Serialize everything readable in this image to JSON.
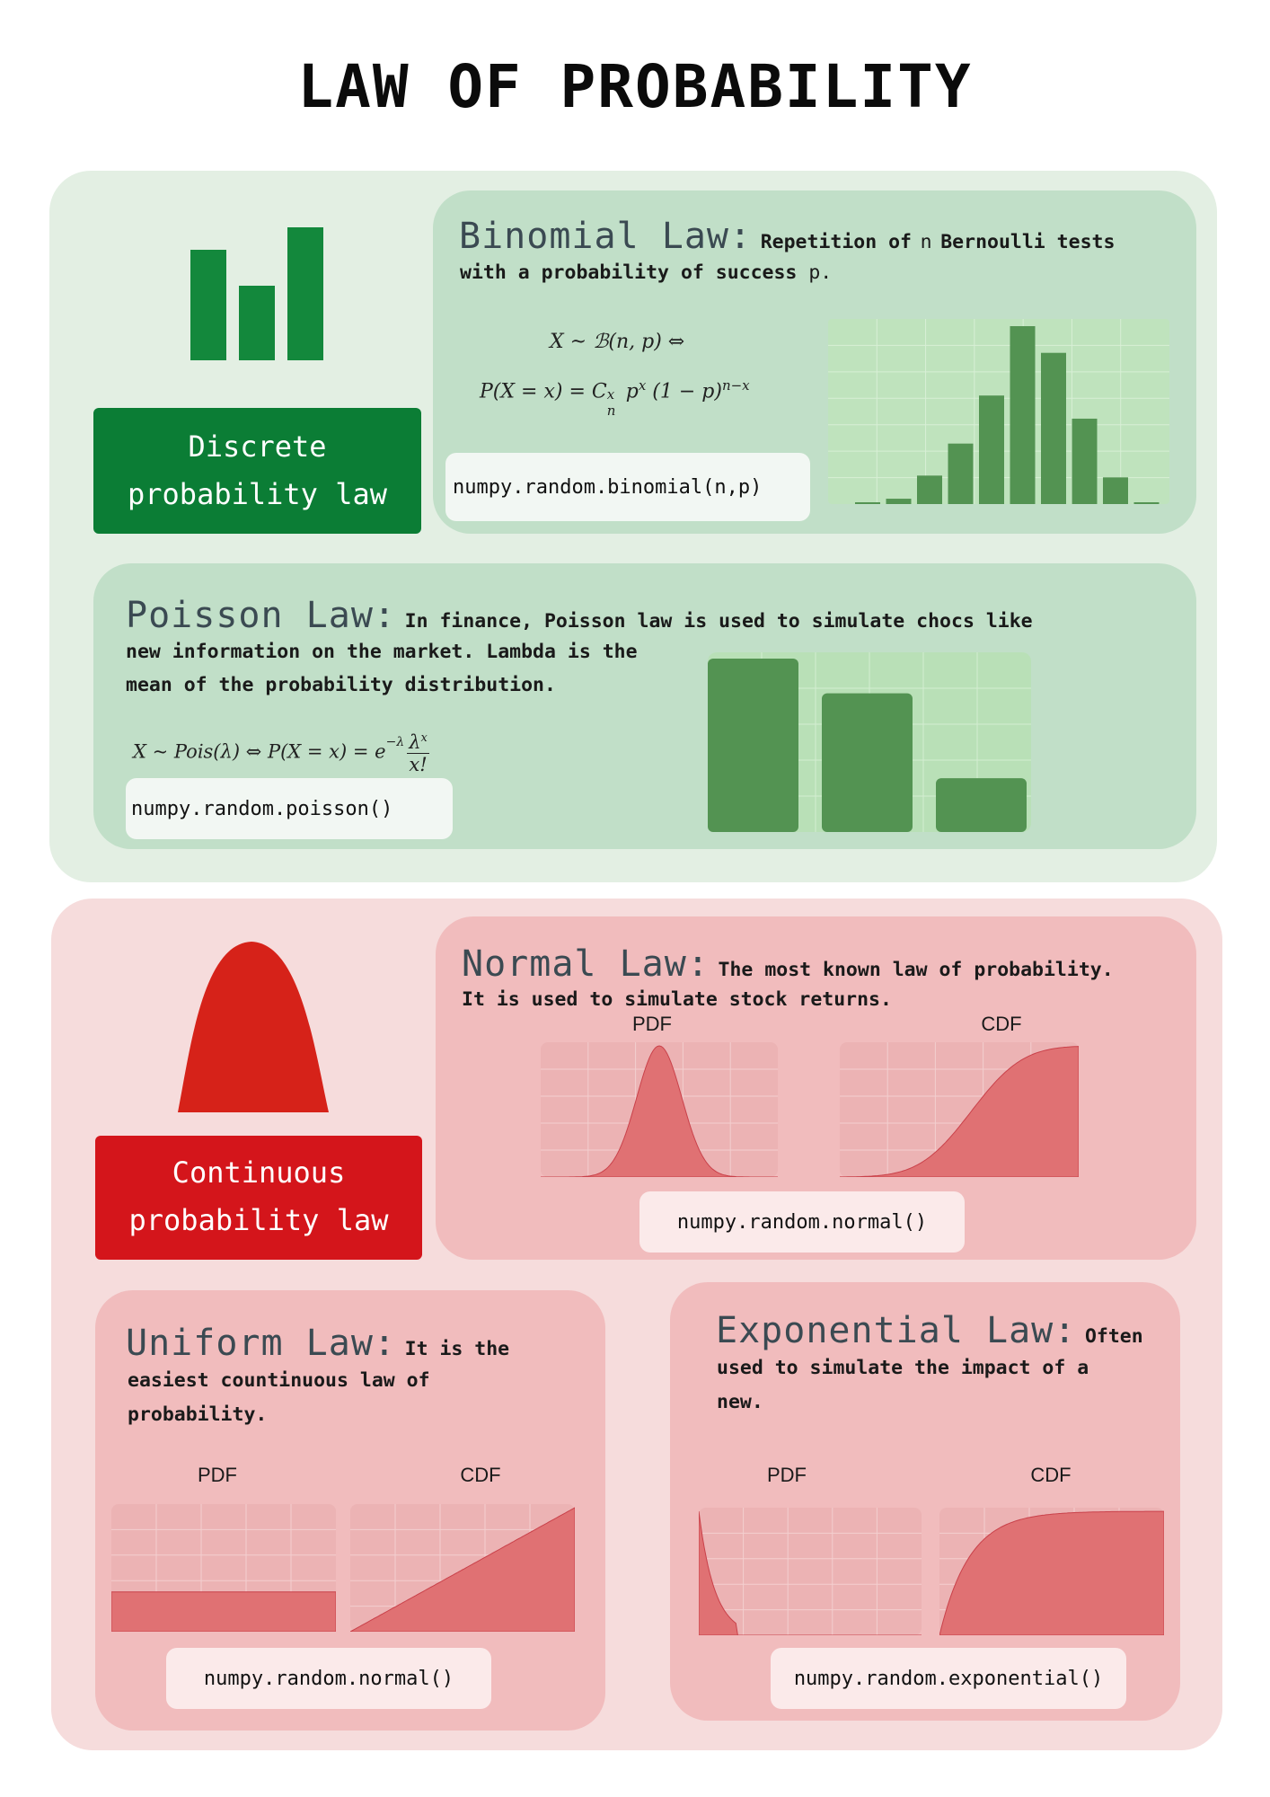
{
  "title": "LAW OF PROBABILITY",
  "colors": {
    "discrete_bg": "#e3efe3",
    "discrete_card": "#c1dfc8",
    "discrete_label": "#0b7d35",
    "bar_green": "#539352",
    "grid_green": "#b9e0b7",
    "continuous_bg": "#f6dcdc",
    "continuous_card": "#f1bcbd",
    "continuous_label": "#d4151b",
    "curve_red": "#e07173",
    "bell_red": "#d62219"
  },
  "discrete": {
    "icon": "bar-chart-icon",
    "label_line1": "Discrete",
    "label_line2": "probability law",
    "binomial": {
      "title": "Binomial Law:",
      "desc_a": "Repetition of",
      "desc_n": "n",
      "desc_b": "Bernoulli tests",
      "desc_c": "with a probability of success",
      "desc_p": "p.",
      "formula1": "X ~ ℬ(n, p) ⇔",
      "formula2_a": "P(X = x) = C",
      "formula2_b": "p",
      "formula2_c": "(1 − p)",
      "sup_x": "x",
      "sub_n": "n",
      "sup_nx": "n−x",
      "code": "numpy.random.binomial(n,p)",
      "bars": [
        0.005,
        0.03,
        0.16,
        0.34,
        0.61,
        1.0,
        0.85,
        0.48,
        0.15,
        0.01
      ]
    },
    "poisson": {
      "title": "Poisson Law:",
      "desc_1": "In finance, Poisson law is used to simulate chocs like",
      "desc_2": "new information on the market. Lambda is the",
      "desc_3": "mean of the probability distribution.",
      "formula_a": "X ~ Pois(λ)  ⇔   P(X = x) = e",
      "formula_exp": "−λ",
      "formula_num": "λ",
      "formula_num_sup": "x",
      "formula_den": "x!",
      "code": "numpy.random.poisson()",
      "bars": [
        1.0,
        0.8,
        0.31
      ]
    }
  },
  "continuous": {
    "icon": "bell-curve-icon",
    "label_line1": "Continuous",
    "label_line2": "probability law",
    "normal": {
      "title": "Normal Law:",
      "desc_1": "The most known law of probability.",
      "desc_2": "It is used to simulate stock returns.",
      "pdf_label": "PDF",
      "cdf_label": "CDF",
      "code": "numpy.random.normal()"
    },
    "uniform": {
      "title": "Uniform Law:",
      "desc_1": "It is the",
      "desc_2": "easiest countinuous law of",
      "desc_3": "probability.",
      "pdf_label": "PDF",
      "cdf_label": "CDF",
      "code": "numpy.random.normal()"
    },
    "exponential": {
      "title": "Exponential Law:",
      "desc_1": "Often",
      "desc_2": "used to simulate the impact of a",
      "desc_3": "new.",
      "pdf_label": "PDF",
      "cdf_label": "CDF",
      "code": "numpy.random.exponential()"
    }
  }
}
